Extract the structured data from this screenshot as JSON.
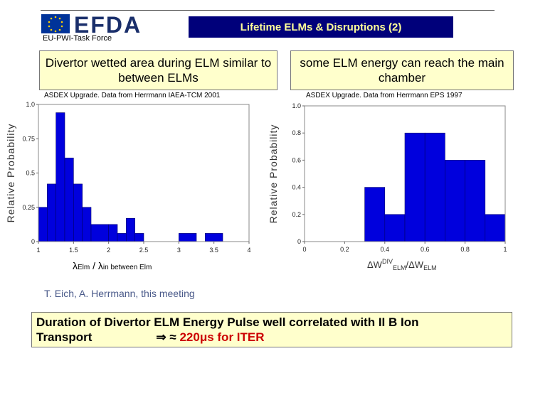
{
  "header": {
    "logo_text": "EFDA",
    "task_force": "EU-PWI-Task Force",
    "title": "Lifetime ELMs & Disruptions (2)"
  },
  "boxes": {
    "left": "Divertor wetted area during ELM similar to between ELMs",
    "right": "some ELM energy can reach the main chamber"
  },
  "left_xlabel": {
    "lambda1": "λ",
    "sub1": "Elm",
    "slash": " / ",
    "lambda2": "λ",
    "sub2": "in between Elm"
  },
  "citation": "T. Eich, A. Herrmann, this meeting",
  "bottom": {
    "line1": "Duration of Divertor ELM Energy Pulse well correlated with II B Ion",
    "line2_prefix": "Transport",
    "line2_arrow": "⇒  ≈",
    "line2_red": "220μs  for ITER"
  },
  "colors": {
    "bar": "#0000dd",
    "title_bg": "#00007a",
    "title_text": "#ffff99",
    "box_bg": "#ffffcc",
    "highlight": "#cc0000"
  },
  "chart_data": [
    {
      "type": "bar",
      "title": "ASDEX Upgrade. Data from Herrmann IAEA-TCM 2001",
      "ylabel": "Relative Probability",
      "xlabel": "",
      "xlim": [
        1,
        4
      ],
      "ylim": [
        0,
        1
      ],
      "xticks": [
        "1",
        "1.5",
        "2",
        "2.5",
        "3",
        "3.5",
        "4"
      ],
      "yticks": [
        "0",
        "0.25",
        "0.5",
        "0.75",
        "1.0"
      ],
      "bins": [
        {
          "x0": 1.0,
          "x1": 1.125,
          "value": 0.25
        },
        {
          "x0": 1.125,
          "x1": 1.25,
          "value": 0.42
        },
        {
          "x0": 1.25,
          "x1": 1.375,
          "value": 0.94
        },
        {
          "x0": 1.375,
          "x1": 1.5,
          "value": 0.61
        },
        {
          "x0": 1.5,
          "x1": 1.625,
          "value": 0.42
        },
        {
          "x0": 1.625,
          "x1": 1.75,
          "value": 0.25
        },
        {
          "x0": 1.75,
          "x1": 2.0,
          "value": 0.125
        },
        {
          "x0": 2.0,
          "x1": 2.125,
          "value": 0.125
        },
        {
          "x0": 2.125,
          "x1": 2.25,
          "value": 0.06
        },
        {
          "x0": 2.25,
          "x1": 2.375,
          "value": 0.17
        },
        {
          "x0": 2.375,
          "x1": 2.5,
          "value": 0.06
        },
        {
          "x0": 3.0,
          "x1": 3.25,
          "value": 0.06
        },
        {
          "x0": 3.375,
          "x1": 3.625,
          "value": 0.06
        }
      ]
    },
    {
      "type": "bar",
      "title": "ASDEX Upgrade. Data from Herrmann EPS 1997",
      "ylabel": "Relative Probability",
      "xlabel": "ΔW^DIV_ELM / ΔW_ELM",
      "xlabel_parts": {
        "dw1": "ΔW",
        "sup": "DIV",
        "sub1": "ELM",
        "slash": "/ΔW",
        "sub2": "ELM"
      },
      "xlim": [
        0,
        1
      ],
      "ylim": [
        0,
        1
      ],
      "xticks": [
        "0",
        "0.2",
        "0.4",
        "0.6",
        "0.8",
        "1"
      ],
      "yticks": [
        "0",
        "0.2",
        "0.4",
        "0.6",
        "0.8",
        "1.0"
      ],
      "bins": [
        {
          "x0": 0.3,
          "x1": 0.4,
          "value": 0.4
        },
        {
          "x0": 0.4,
          "x1": 0.5,
          "value": 0.2
        },
        {
          "x0": 0.5,
          "x1": 0.6,
          "value": 0.8
        },
        {
          "x0": 0.6,
          "x1": 0.7,
          "value": 0.8
        },
        {
          "x0": 0.7,
          "x1": 0.8,
          "value": 0.6
        },
        {
          "x0": 0.8,
          "x1": 0.9,
          "value": 0.6
        },
        {
          "x0": 0.9,
          "x1": 1.0,
          "value": 0.2
        }
      ]
    }
  ]
}
